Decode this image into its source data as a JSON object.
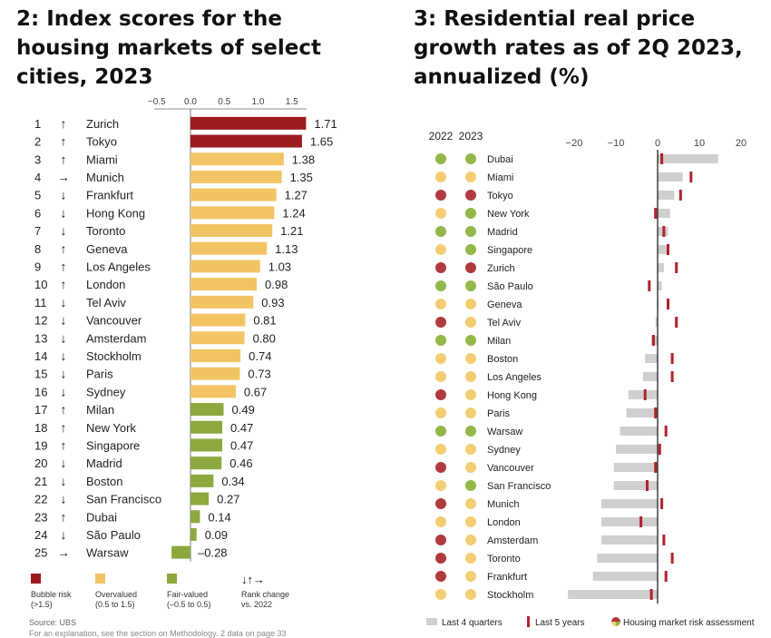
{
  "chart_data": [
    {
      "type": "bar",
      "title": "2: Index scores for the housing markets of select cities, 2023",
      "x_ticks": [
        "−0.5",
        "0.0",
        "0.5",
        "1.0",
        "1.5"
      ],
      "x_tick_values": [
        -0.5,
        0.0,
        0.5,
        1.0,
        1.5
      ],
      "xlim": [
        -0.5,
        1.75
      ],
      "rows": [
        {
          "rank": "1",
          "change": "up",
          "city": "Zurich",
          "value": 1.71,
          "label": "1.71",
          "category": "bubble"
        },
        {
          "rank": "2",
          "change": "up",
          "city": "Tokyo",
          "value": 1.65,
          "label": "1.65",
          "category": "bubble"
        },
        {
          "rank": "3",
          "change": "up",
          "city": "Miami",
          "value": 1.38,
          "label": "1.38",
          "category": "over"
        },
        {
          "rank": "4",
          "change": "same",
          "city": "Munich",
          "value": 1.35,
          "label": "1.35",
          "category": "over"
        },
        {
          "rank": "5",
          "change": "down",
          "city": "Frankfurt",
          "value": 1.27,
          "label": "1.27",
          "category": "over"
        },
        {
          "rank": "6",
          "change": "down",
          "city": "Hong Kong",
          "value": 1.24,
          "label": "1.24",
          "category": "over"
        },
        {
          "rank": "7",
          "change": "down",
          "city": "Toronto",
          "value": 1.21,
          "label": "1.21",
          "category": "over"
        },
        {
          "rank": "8",
          "change": "up",
          "city": "Geneva",
          "value": 1.13,
          "label": "1.13",
          "category": "over"
        },
        {
          "rank": "9",
          "change": "up",
          "city": "Los Angeles",
          "value": 1.03,
          "label": "1.03",
          "category": "over"
        },
        {
          "rank": "10",
          "change": "up",
          "city": "London",
          "value": 0.98,
          "label": "0.98",
          "category": "over"
        },
        {
          "rank": "11",
          "change": "down",
          "city": "Tel Aviv",
          "value": 0.93,
          "label": "0.93",
          "category": "over"
        },
        {
          "rank": "12",
          "change": "down",
          "city": "Vancouver",
          "value": 0.81,
          "label": "0.81",
          "category": "over"
        },
        {
          "rank": "13",
          "change": "down",
          "city": "Amsterdam",
          "value": 0.8,
          "label": "0.80",
          "category": "over"
        },
        {
          "rank": "14",
          "change": "down",
          "city": "Stockholm",
          "value": 0.74,
          "label": "0.74",
          "category": "over"
        },
        {
          "rank": "15",
          "change": "down",
          "city": "Paris",
          "value": 0.73,
          "label": "0.73",
          "category": "over"
        },
        {
          "rank": "16",
          "change": "down",
          "city": "Sydney",
          "value": 0.67,
          "label": "0.67",
          "category": "over"
        },
        {
          "rank": "17",
          "change": "up",
          "city": "Milan",
          "value": 0.49,
          "label": "0.49",
          "category": "fair"
        },
        {
          "rank": "18",
          "change": "up",
          "city": "New York",
          "value": 0.47,
          "label": "0.47",
          "category": "fair"
        },
        {
          "rank": "19",
          "change": "up",
          "city": "Singapore",
          "value": 0.47,
          "label": "0.47",
          "category": "fair"
        },
        {
          "rank": "20",
          "change": "down",
          "city": "Madrid",
          "value": 0.46,
          "label": "0.46",
          "category": "fair"
        },
        {
          "rank": "21",
          "change": "down",
          "city": "Boston",
          "value": 0.34,
          "label": "0.34",
          "category": "fair"
        },
        {
          "rank": "22",
          "change": "down",
          "city": "San Francisco",
          "value": 0.27,
          "label": "0.27",
          "category": "fair"
        },
        {
          "rank": "23",
          "change": "up",
          "city": "Dubai",
          "value": 0.14,
          "label": "0.14",
          "category": "fair"
        },
        {
          "rank": "24",
          "change": "down",
          "city": "São Paulo",
          "value": 0.09,
          "label": "0.09",
          "category": "fair"
        },
        {
          "rank": "25",
          "change": "same",
          "city": "Warsaw",
          "value": -0.28,
          "label": "–0.28",
          "category": "fair"
        }
      ],
      "legend": [
        {
          "key": "bubble",
          "label": "Bubble risk",
          "range": "(>1.5)"
        },
        {
          "key": "over",
          "label": "Overvalued",
          "range": "(0.5 to 1.5)"
        },
        {
          "key": "fair",
          "label": "Fair-valued",
          "range": "(–0.5 to 0.5)"
        },
        {
          "key": "arrows",
          "label": "Rank change",
          "range": "vs. 2022",
          "glyphs": "↓↑→"
        }
      ],
      "legend_position": "bottom",
      "source": "Source: UBS",
      "footnote": "For an explanation, see the section on Methodology. 2 data on page 33"
    },
    {
      "type": "bar",
      "title": "3: Residential real price growth rates as of 2Q 2023, annualized (%)",
      "status_headers": [
        "2022",
        "2023"
      ],
      "x_ticks": [
        "−20",
        "−10",
        "0",
        "10",
        "20"
      ],
      "x_tick_values": [
        -20,
        -10,
        0,
        10,
        20
      ],
      "xlim": [
        -22,
        21
      ],
      "series": [
        {
          "name": "Last 4 quarters",
          "kind": "bar"
        },
        {
          "name": "Last 5 years",
          "kind": "marker"
        }
      ],
      "rows": [
        {
          "city": "Dubai",
          "s2022": "fair",
          "s2023": "fair",
          "last4q": 14.5,
          "last5y": 1.0
        },
        {
          "city": "Miami",
          "s2022": "over",
          "s2023": "over",
          "last4q": 6.0,
          "last5y": 8.0
        },
        {
          "city": "Tokyo",
          "s2022": "bubble",
          "s2023": "bubble",
          "last4q": 4.0,
          "last5y": 5.5
        },
        {
          "city": "New York",
          "s2022": "over",
          "s2023": "fair",
          "last4q": 3.0,
          "last5y": -0.5
        },
        {
          "city": "Madrid",
          "s2022": "fair",
          "s2023": "fair",
          "last4q": 2.5,
          "last5y": 1.5
        },
        {
          "city": "Singapore",
          "s2022": "over",
          "s2023": "fair",
          "last4q": 2.5,
          "last5y": 2.5
        },
        {
          "city": "Zurich",
          "s2022": "bubble",
          "s2023": "bubble",
          "last4q": 1.5,
          "last5y": 4.5
        },
        {
          "city": "São Paulo",
          "s2022": "fair",
          "s2023": "fair",
          "last4q": 1.0,
          "last5y": -2.0
        },
        {
          "city": "Geneva",
          "s2022": "over",
          "s2023": "over",
          "last4q": 0.2,
          "last5y": 2.5
        },
        {
          "city": "Tel Aviv",
          "s2022": "bubble",
          "s2023": "over",
          "last4q": -0.5,
          "last5y": 4.5
        },
        {
          "city": "Milan",
          "s2022": "fair",
          "s2023": "fair",
          "last4q": -1.5,
          "last5y": -1.0
        },
        {
          "city": "Boston",
          "s2022": "over",
          "s2023": "over",
          "last4q": -3.0,
          "last5y": 3.5
        },
        {
          "city": "Los Angeles",
          "s2022": "over",
          "s2023": "over",
          "last4q": -3.5,
          "last5y": 3.5
        },
        {
          "city": "Hong Kong",
          "s2022": "bubble",
          "s2023": "over",
          "last4q": -7.0,
          "last5y": -3.0
        },
        {
          "city": "Paris",
          "s2022": "over",
          "s2023": "over",
          "last4q": -7.5,
          "last5y": -0.5
        },
        {
          "city": "Warsaw",
          "s2022": "fair",
          "s2023": "fair",
          "last4q": -9.0,
          "last5y": 2.0
        },
        {
          "city": "Sydney",
          "s2022": "over",
          "s2023": "over",
          "last4q": -10.0,
          "last5y": 0.5
        },
        {
          "city": "Vancouver",
          "s2022": "bubble",
          "s2023": "over",
          "last4q": -10.5,
          "last5y": -0.5
        },
        {
          "city": "San Francisco",
          "s2022": "over",
          "s2023": "fair",
          "last4q": -10.5,
          "last5y": -2.5
        },
        {
          "city": "Munich",
          "s2022": "bubble",
          "s2023": "over",
          "last4q": -13.5,
          "last5y": 1.0
        },
        {
          "city": "London",
          "s2022": "over",
          "s2023": "over",
          "last4q": -13.5,
          "last5y": -4.0
        },
        {
          "city": "Amsterdam",
          "s2022": "bubble",
          "s2023": "over",
          "last4q": -13.5,
          "last5y": 1.5
        },
        {
          "city": "Toronto",
          "s2022": "bubble",
          "s2023": "over",
          "last4q": -14.5,
          "last5y": 3.5
        },
        {
          "city": "Frankfurt",
          "s2022": "bubble",
          "s2023": "over",
          "last4q": -15.5,
          "last5y": 2.0
        },
        {
          "city": "Stockholm",
          "s2022": "over",
          "s2023": "over",
          "last4q": -21.5,
          "last5y": -1.5
        }
      ],
      "legend": [
        "Last 4 quarters",
        "Last 5 years",
        "Housing market risk assessment"
      ],
      "legend_position": "bottom"
    }
  ],
  "colors": {
    "bubble": "#9b1b1f",
    "over": "#f2c464",
    "fair": "#8ca83e",
    "bar_gray": "#cfcfcf",
    "marker_red": "#b0222c",
    "bubble_dot": "#b03a3e",
    "over_dot": "#f3cd71",
    "fair_dot": "#93b748"
  }
}
